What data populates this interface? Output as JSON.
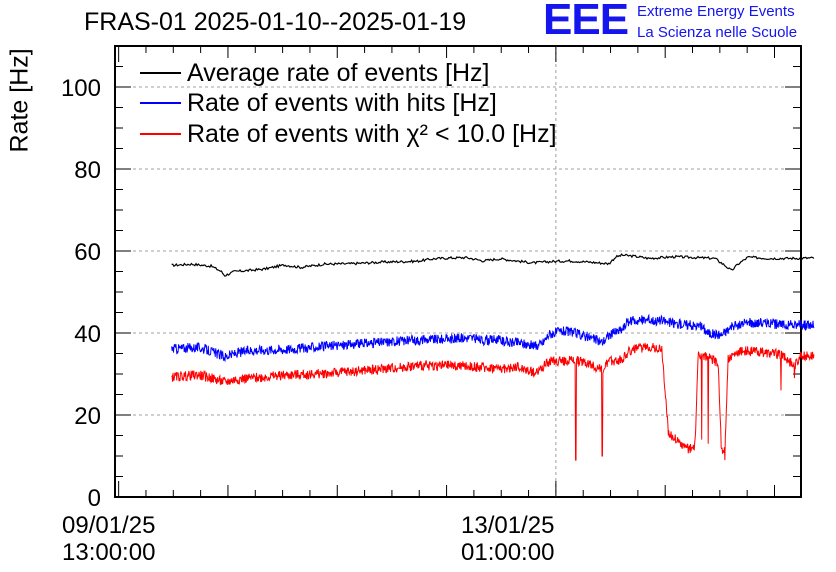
{
  "header": {
    "title": "FRAS-01 2025-01-10--2025-01-19"
  },
  "logo": {
    "mark": "EEE",
    "line1": "Extreme Energy Events",
    "line2": "La Scienza nelle Scuole",
    "color": "#1515ee"
  },
  "chart_data": {
    "type": "line",
    "title": "FRAS-01 2025-01-10--2025-01-19",
    "ylabel": "Rate [Hz]",
    "xlabel": "",
    "ylim": [
      0,
      110
    ],
    "yticks": [
      0,
      20,
      40,
      60,
      80,
      100
    ],
    "grid": true,
    "legend_position": "top-left",
    "x_unit": "hours since 09/01/25 13:00:00",
    "xlim": [
      -1.1,
      206
    ],
    "xticks": [
      {
        "x": 0,
        "date": "09/01/25",
        "time": "13:00:00"
      },
      {
        "x": 132,
        "date": "13/01/25",
        "time": "01:00:00"
      }
    ],
    "series": [
      {
        "name": "Average rate of events [Hz]",
        "color": "#000000",
        "points": [
          [
            16,
            56.5
          ],
          [
            22,
            56.8
          ],
          [
            28,
            56.3
          ],
          [
            31,
            55.0
          ],
          [
            32,
            54.0
          ],
          [
            35,
            55.0
          ],
          [
            40,
            55.3
          ],
          [
            44,
            55.6
          ],
          [
            50,
            56.6
          ],
          [
            55,
            56.0
          ],
          [
            62,
            56.8
          ],
          [
            70,
            56.9
          ],
          [
            80,
            57.3
          ],
          [
            90,
            57.5
          ],
          [
            95,
            58.1
          ],
          [
            100,
            58.3
          ],
          [
            105,
            58.4
          ],
          [
            110,
            57.6
          ],
          [
            115,
            58.1
          ],
          [
            120,
            57.6
          ],
          [
            125,
            57.1
          ],
          [
            130,
            57.4
          ],
          [
            136,
            57.6
          ],
          [
            142,
            57.3
          ],
          [
            148,
            56.9
          ],
          [
            150,
            58.5
          ],
          [
            152,
            59.0
          ],
          [
            156,
            58.7
          ],
          [
            160,
            58.2
          ],
          [
            168,
            58.6
          ],
          [
            174,
            58.4
          ],
          [
            180,
            58.2
          ],
          [
            183,
            56.5
          ],
          [
            185,
            55.2
          ],
          [
            187,
            56.8
          ],
          [
            190,
            58.5
          ],
          [
            196,
            58.2
          ],
          [
            202,
            58.2
          ],
          [
            210,
            58.3
          ]
        ],
        "noise": 0.6
      },
      {
        "name": "Rate of events with hits [Hz]",
        "color": "#0000ff",
        "points": [
          [
            16,
            36.2
          ],
          [
            24,
            36.5
          ],
          [
            28,
            35.5
          ],
          [
            32,
            34.2
          ],
          [
            36,
            35.2
          ],
          [
            40,
            35.8
          ],
          [
            50,
            36.0
          ],
          [
            60,
            36.6
          ],
          [
            70,
            37.2
          ],
          [
            80,
            37.8
          ],
          [
            90,
            38.3
          ],
          [
            100,
            38.6
          ],
          [
            106,
            38.9
          ],
          [
            110,
            38.2
          ],
          [
            114,
            38.5
          ],
          [
            118,
            37.6
          ],
          [
            120,
            37.8
          ],
          [
            126,
            36.8
          ],
          [
            128,
            37.6
          ],
          [
            130,
            39.8
          ],
          [
            134,
            40.5
          ],
          [
            138,
            40.0
          ],
          [
            142,
            39.0
          ],
          [
            146,
            37.8
          ],
          [
            148,
            39.5
          ],
          [
            152,
            40.9
          ],
          [
            154,
            42.8
          ],
          [
            158,
            43.2
          ],
          [
            164,
            43.0
          ],
          [
            168,
            42.3
          ],
          [
            172,
            42.0
          ],
          [
            176,
            41.6
          ],
          [
            178,
            40.0
          ],
          [
            182,
            39.6
          ],
          [
            185,
            41.4
          ],
          [
            190,
            42.5
          ],
          [
            196,
            42.4
          ],
          [
            200,
            42.0
          ],
          [
            210,
            41.9
          ]
        ],
        "noise": 2.4
      },
      {
        "name": "Rate of events with χ² < 10.0 [Hz]",
        "color": "#ff0000",
        "points": [
          [
            16,
            29.2
          ],
          [
            24,
            29.8
          ],
          [
            28,
            29.0
          ],
          [
            32,
            28.0
          ],
          [
            36,
            28.8
          ],
          [
            40,
            29.0
          ],
          [
            50,
            29.7
          ],
          [
            60,
            30.0
          ],
          [
            70,
            30.6
          ],
          [
            80,
            31.3
          ],
          [
            90,
            32.0
          ],
          [
            100,
            32.1
          ],
          [
            110,
            31.6
          ],
          [
            118,
            31.3
          ],
          [
            120,
            31.8
          ],
          [
            126,
            30.3
          ],
          [
            128,
            31.8
          ],
          [
            130,
            33.0
          ],
          [
            138,
            33.4
          ],
          [
            142,
            32.6
          ],
          [
            146,
            31.0
          ],
          [
            148,
            33.0
          ],
          [
            152,
            33.6
          ],
          [
            154,
            35.6
          ],
          [
            160,
            36.8
          ],
          [
            164,
            36.0
          ],
          [
            166,
            15.5
          ],
          [
            170,
            12.8
          ],
          [
            172,
            11.5
          ],
          [
            174,
            12.8
          ],
          [
            175,
            34.8
          ],
          [
            178,
            34.0
          ],
          [
            181,
            32.8
          ],
          [
            182,
            10.8
          ],
          [
            183,
            11.5
          ],
          [
            184,
            33.5
          ],
          [
            188,
            35.6
          ],
          [
            194,
            35.4
          ],
          [
            200,
            34.8
          ],
          [
            204,
            32.0
          ],
          [
            206,
            34.5
          ],
          [
            210,
            34.6
          ]
        ],
        "spikes": [
          [
            138,
            9.0
          ],
          [
            146,
            10.0
          ],
          [
            176,
            14.0
          ],
          [
            178,
            13.0
          ],
          [
            183,
            9.0
          ],
          [
            200,
            26.0
          ],
          [
            204,
            29.0
          ]
        ],
        "noise": 2.4
      }
    ]
  }
}
